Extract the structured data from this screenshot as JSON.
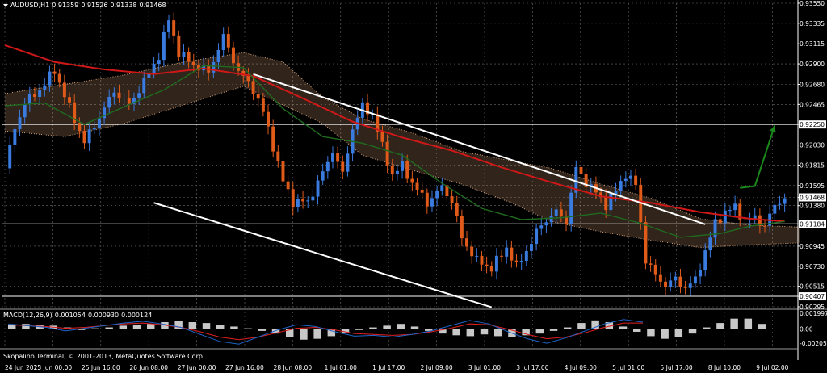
{
  "colors": {
    "background": "#000000",
    "grid": "#6b6b6b",
    "bull": "#3a7be0",
    "bear": "#e05a1a",
    "ma_fast": "#d01818",
    "ma_slow": "#1f6b1f",
    "cloud": "#d9a37a",
    "trendline": "#ffffff",
    "arrow": "#1a8a1a",
    "macd_hist": "#c8c8c8",
    "macd_signal": "#e02020",
    "macd_line": "#1e64c8",
    "price_box_bg": "#ffffff",
    "price_box_fg": "#000000"
  },
  "header": {
    "symbol": "AUDUSD,H1",
    "open": "0.91359",
    "high": "0.91526",
    "low": "0.91338",
    "close": "0.91468"
  },
  "macd": {
    "label": "MACD(12,26,9)",
    "value1": "0.001054",
    "value2": "0.000930",
    "value3": "0.000124",
    "ticks": [
      "0.001997",
      "0.00",
      "-0.002050"
    ]
  },
  "footer": {
    "copyright": "Skopalino Terminal, © 2001-2013, MetaQuotes Software Corp."
  },
  "chart_data": {
    "type": "candlestick",
    "title": "AUDUSD,H1",
    "x_ticks": [
      "24 Jun 2013",
      "25 Jun 00:00",
      "25 Jun 16:00",
      "26 Jun 08:00",
      "27 Jun 00:00",
      "27 Jun 16:00",
      "28 Jun 08:00",
      "1 Jul 01:00",
      "1 Jul 17:00",
      "2 Jul 09:00",
      "3 Jul 01:00",
      "3 Jul 17:00",
      "4 Jul 09:00",
      "5 Jul 01:00",
      "5 Jul 17:00",
      "8 Jul 10:00",
      "9 Jul 02:00"
    ],
    "y_ticks": [
      "0.93550",
      "0.93335",
      "0.93115",
      "0.92900",
      "0.92680",
      "0.92465",
      "0.92250",
      "0.92030",
      "0.91815",
      "0.91595",
      "0.91468",
      "0.91380",
      "0.91184",
      "0.90945",
      "0.90730",
      "0.90515",
      "0.90407",
      "0.90295"
    ],
    "ylim": [
      0.90295,
      0.9355
    ],
    "current_price": 0.91468,
    "horizontal_levels": [
      0.9225,
      0.91184,
      0.90407
    ],
    "price_path": [
      [
        0,
        0.9178
      ],
      [
        2,
        0.9221
      ],
      [
        4,
        0.9248
      ],
      [
        7,
        0.9262
      ],
      [
        10,
        0.9283
      ],
      [
        13,
        0.9243
      ],
      [
        16,
        0.9206
      ],
      [
        19,
        0.9233
      ],
      [
        22,
        0.9261
      ],
      [
        25,
        0.9246
      ],
      [
        28,
        0.9271
      ],
      [
        31,
        0.9299
      ],
      [
        33,
        0.9338
      ],
      [
        35,
        0.9302
      ],
      [
        38,
        0.9289
      ],
      [
        41,
        0.9281
      ],
      [
        44,
        0.9319
      ],
      [
        47,
        0.9282
      ],
      [
        50,
        0.9263
      ],
      [
        52,
        0.9238
      ],
      [
        54,
        0.9202
      ],
      [
        56,
        0.9164
      ],
      [
        58,
        0.9142
      ],
      [
        61,
        0.9142
      ],
      [
        64,
        0.9173
      ],
      [
        66,
        0.9197
      ],
      [
        68,
        0.9171
      ],
      [
        70,
        0.9221
      ],
      [
        72,
        0.9244
      ],
      [
        74,
        0.9236
      ],
      [
        76,
        0.9201
      ],
      [
        78,
        0.9171
      ],
      [
        80,
        0.9181
      ],
      [
        82,
        0.9162
      ],
      [
        85,
        0.9141
      ],
      [
        88,
        0.9158
      ],
      [
        90,
        0.9143
      ],
      [
        92,
        0.9103
      ],
      [
        95,
        0.9079
      ],
      [
        98,
        0.9071
      ],
      [
        101,
        0.9093
      ],
      [
        103,
        0.9072
      ],
      [
        106,
        0.9099
      ],
      [
        108,
        0.9118
      ],
      [
        111,
        0.9131
      ],
      [
        113,
        0.9122
      ],
      [
        115,
        0.9178
      ],
      [
        117,
        0.9163
      ],
      [
        119,
        0.9152
      ],
      [
        121,
        0.9139
      ],
      [
        123,
        0.9154
      ],
      [
        125,
        0.9172
      ],
      [
        127,
        0.916
      ],
      [
        129,
        0.908
      ],
      [
        131,
        0.9063
      ],
      [
        133,
        0.9053
      ],
      [
        135,
        0.9059
      ],
      [
        137,
        0.905
      ],
      [
        139,
        0.9058
      ],
      [
        141,
        0.9089
      ],
      [
        143,
        0.9119
      ],
      [
        145,
        0.9131
      ],
      [
        147,
        0.9136
      ],
      [
        149,
        0.9121
      ],
      [
        151,
        0.9125
      ],
      [
        153,
        0.9116
      ],
      [
        155,
        0.9138
      ],
      [
        157,
        0.9147
      ]
    ],
    "moving_averages": [
      {
        "path": [
          [
            0,
            0.931
          ],
          [
            10,
            0.9292
          ],
          [
            20,
            0.9284
          ],
          [
            30,
            0.9279
          ],
          [
            40,
            0.9285
          ],
          [
            50,
            0.9277
          ],
          [
            60,
            0.9253
          ],
          [
            70,
            0.9228
          ],
          [
            80,
            0.9211
          ],
          [
            90,
            0.9197
          ],
          [
            100,
            0.9179
          ],
          [
            110,
            0.9163
          ],
          [
            120,
            0.9148
          ],
          [
            130,
            0.9141
          ],
          [
            140,
            0.9131
          ],
          [
            150,
            0.9124
          ],
          [
            157,
            0.9121
          ]
        ]
      },
      {
        "path": [
          [
            0,
            0.9245
          ],
          [
            8,
            0.9248
          ],
          [
            16,
            0.9225
          ],
          [
            24,
            0.9244
          ],
          [
            32,
            0.9262
          ],
          [
            40,
            0.9288
          ],
          [
            48,
            0.9286
          ],
          [
            56,
            0.9242
          ],
          [
            64,
            0.9212
          ],
          [
            72,
            0.9205
          ],
          [
            80,
            0.9192
          ],
          [
            88,
            0.9162
          ],
          [
            96,
            0.9135
          ],
          [
            104,
            0.9123
          ],
          [
            112,
            0.9125
          ],
          [
            120,
            0.913
          ],
          [
            128,
            0.9119
          ],
          [
            136,
            0.9104
          ],
          [
            144,
            0.9108
          ],
          [
            150,
            0.9116
          ],
          [
            157,
            0.9121
          ]
        ]
      }
    ],
    "channel_lines": [
      [
        [
          50,
          0.9279
        ],
        [
          141,
          0.9118
        ]
      ],
      [
        [
          30,
          0.9141
        ],
        [
          98,
          0.9029
        ]
      ]
    ],
    "cloud": {
      "upper": [
        [
          0,
          0.9258
        ],
        [
          12,
          0.9268
        ],
        [
          24,
          0.9278
        ],
        [
          36,
          0.9292
        ],
        [
          48,
          0.9302
        ],
        [
          56,
          0.9292
        ],
        [
          64,
          0.9254
        ],
        [
          72,
          0.9231
        ],
        [
          82,
          0.9216
        ],
        [
          92,
          0.9196
        ],
        [
          102,
          0.9186
        ],
        [
          110,
          0.9178
        ],
        [
          120,
          0.9161
        ],
        [
          130,
          0.9146
        ],
        [
          140,
          0.9124
        ],
        [
          150,
          0.9117
        ],
        [
          160,
          0.9115
        ]
      ],
      "lower": [
        [
          0,
          0.9218
        ],
        [
          12,
          0.9212
        ],
        [
          24,
          0.9226
        ],
        [
          36,
          0.9246
        ],
        [
          48,
          0.9266
        ],
        [
          56,
          0.9246
        ],
        [
          64,
          0.9226
        ],
        [
          72,
          0.9192
        ],
        [
          82,
          0.9176
        ],
        [
          92,
          0.9161
        ],
        [
          102,
          0.9141
        ],
        [
          110,
          0.9121
        ],
        [
          120,
          0.911
        ],
        [
          130,
          0.9101
        ],
        [
          140,
          0.9093
        ],
        [
          150,
          0.9096
        ],
        [
          160,
          0.9098
        ]
      ]
    },
    "annotation_arrow": {
      "path": [
        [
          148,
          0.9157
        ],
        [
          151,
          0.9159
        ],
        [
          155,
          0.9224
        ]
      ]
    },
    "macd_series": {
      "ylim": [
        -0.00205,
        0.001997
      ],
      "histogram": [
        0.0005,
        0.0006,
        0.0005,
        0.0004,
        0.0002,
        -0.0001,
        0.0001,
        0.0002,
        0.0004,
        0.0005,
        0.0006,
        0.0008,
        0.0009,
        0.0008,
        0.0007,
        0.0005,
        0.0003,
        0.0001,
        -0.0002,
        -0.0005,
        -0.0009,
        -0.0012,
        -0.0011,
        -0.0008,
        -0.0004,
        -0.0001,
        0.0002,
        0.0004,
        0.0006,
        0.0003,
        -0.0002,
        -0.0005,
        -0.0007,
        -0.0008,
        -0.0006,
        -0.0008,
        -0.0009,
        -0.0007,
        -0.0005,
        -0.0002,
        0.0002,
        0.0007,
        0.001,
        0.0008,
        0.0003,
        -0.0003,
        -0.0008,
        -0.0011,
        -0.0009,
        -0.0005,
        0.0002,
        0.0007,
        0.0012,
        0.0012,
        0.0006
      ],
      "macd_line": [
        0.0006,
        0.0004,
        0.0002,
        -0.0002,
        0.0001,
        0.0004,
        0.0007,
        0.0009,
        0.0006,
        0.0002,
        -0.0006,
        -0.0014,
        -0.0017,
        -0.0009,
        -0.0001,
        0.0005,
        0.0003,
        -0.0003,
        -0.0008,
        -0.0007,
        -0.0009,
        -0.0006,
        -0.0002,
        0.0004,
        0.001,
        0.0006,
        -0.0003,
        -0.0011,
        -0.0016,
        -0.001,
        -0.0002,
        0.0006,
        0.0011,
        0.0008
      ],
      "signal_line": [
        0.0005,
        0.0004,
        0.0003,
        0.0001,
        0.0002,
        0.0004,
        0.0006,
        0.0007,
        0.0005,
        0.0002,
        -0.0003,
        -0.0009,
        -0.0012,
        -0.0009,
        -0.0004,
        0.0001,
        0.0002,
        -0.0001,
        -0.0005,
        -0.0006,
        -0.0007,
        -0.0006,
        -0.0003,
        0.0001,
        0.0006,
        0.0005,
        0.0,
        -0.0006,
        -0.0011,
        -0.0009,
        -0.0004,
        0.0002,
        0.0007,
        0.0007
      ]
    }
  }
}
